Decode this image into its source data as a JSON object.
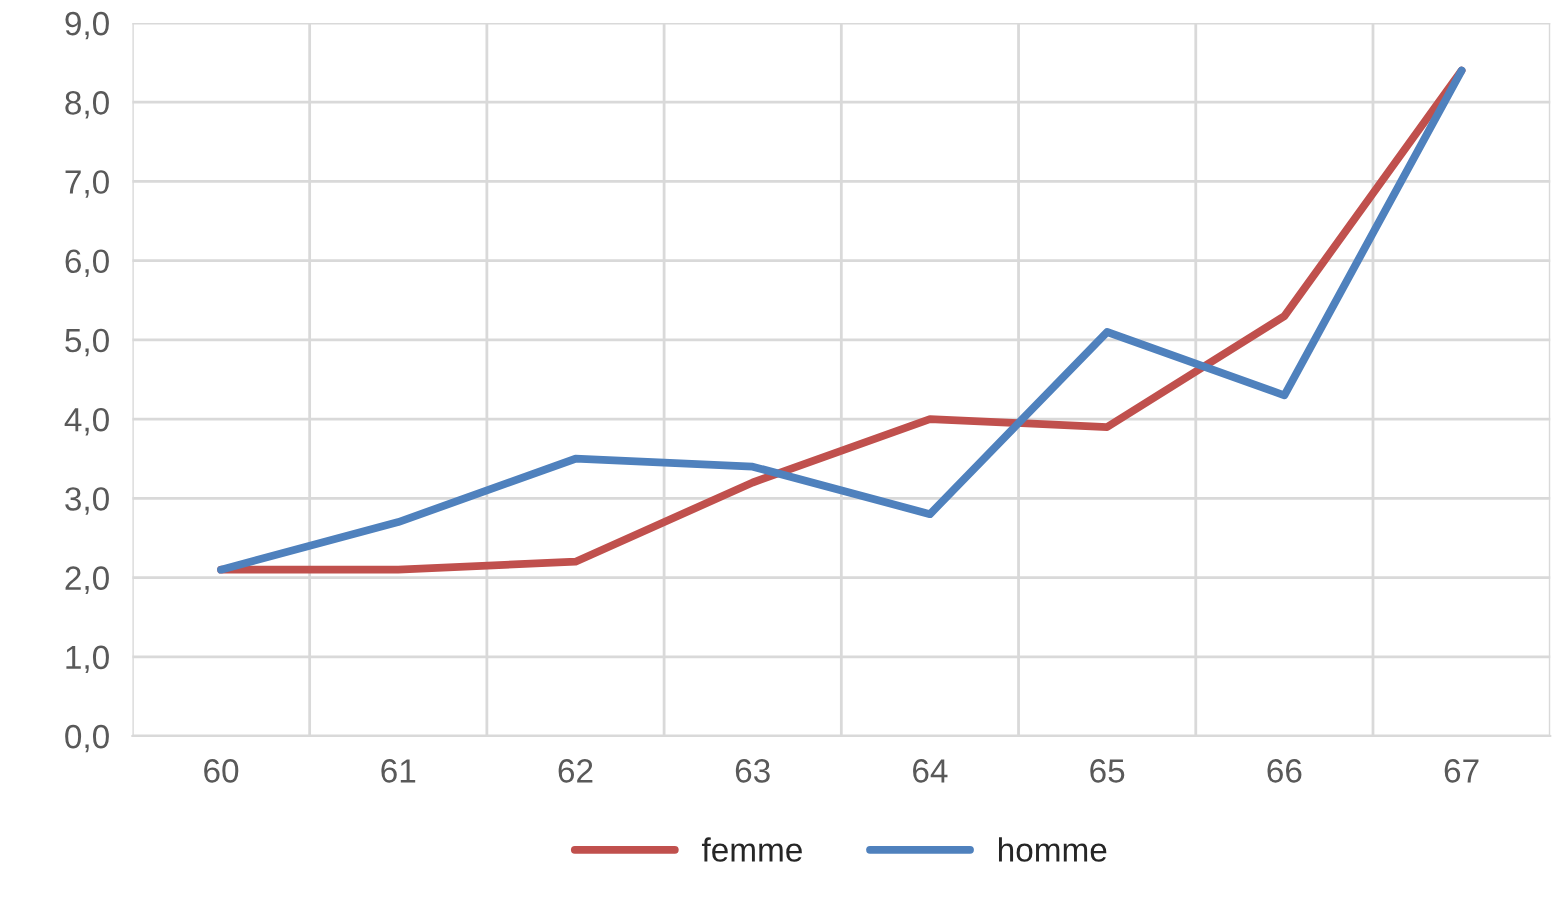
{
  "chart_data": {
    "type": "line",
    "categories": [
      "60",
      "61",
      "62",
      "63",
      "64",
      "65",
      "66",
      "67"
    ],
    "series": [
      {
        "name": "femme",
        "color": "#c0504d",
        "values": [
          2.1,
          2.1,
          2.2,
          3.2,
          4.0,
          3.9,
          5.3,
          8.4
        ]
      },
      {
        "name": "homme",
        "color": "#4f81bd",
        "values": [
          2.1,
          2.7,
          3.5,
          3.4,
          2.8,
          5.1,
          4.3,
          8.4
        ]
      }
    ],
    "ylim": [
      0,
      9
    ],
    "yticks": [
      {
        "value": 0,
        "label": "0,0"
      },
      {
        "value": 1,
        "label": "1,0"
      },
      {
        "value": 2,
        "label": "2,0"
      },
      {
        "value": 3,
        "label": "3,0"
      },
      {
        "value": 4,
        "label": "4,0"
      },
      {
        "value": 5,
        "label": "5,0"
      },
      {
        "value": 6,
        "label": "6,0"
      },
      {
        "value": 7,
        "label": "7,0"
      },
      {
        "value": 8,
        "label": "8,0"
      },
      {
        "value": 9,
        "label": "9,0"
      }
    ],
    "grid": true,
    "legend": "bottom",
    "marker": "none",
    "line_style": "solid"
  }
}
